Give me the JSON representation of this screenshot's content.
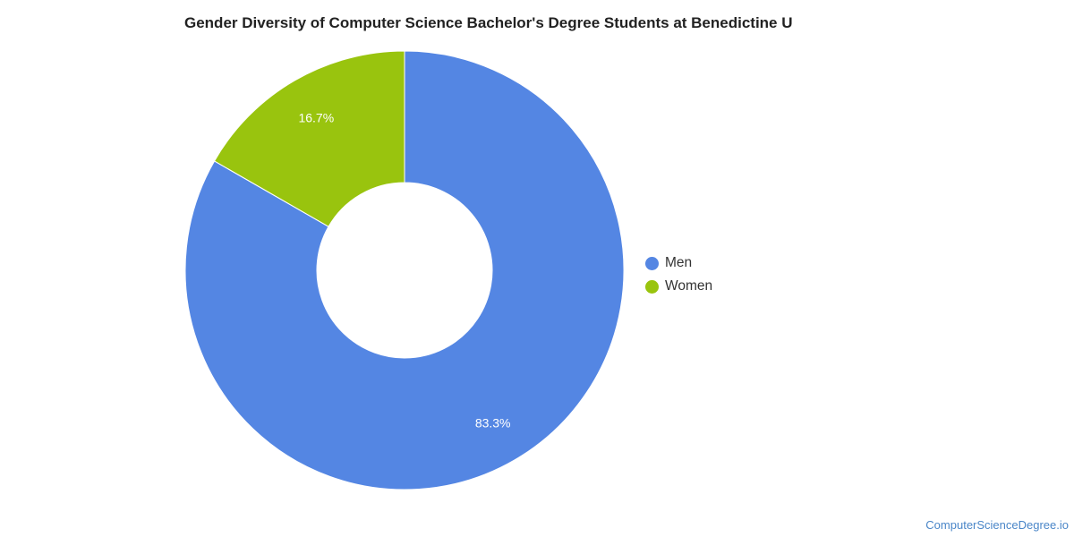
{
  "chart_data": {
    "type": "pie",
    "title": "Gender Diversity of Computer Science Bachelor's Degree Students at Benedictine U",
    "labels": [
      "Men",
      "Women"
    ],
    "values": [
      83.3,
      16.7
    ],
    "value_labels": [
      "83.3%",
      "16.7%"
    ],
    "colors": [
      "#5486e3",
      "#99c40e"
    ],
    "donut": true,
    "legend_position": "right"
  },
  "footer": {
    "watermark": "ComputerScienceDegree.io"
  }
}
